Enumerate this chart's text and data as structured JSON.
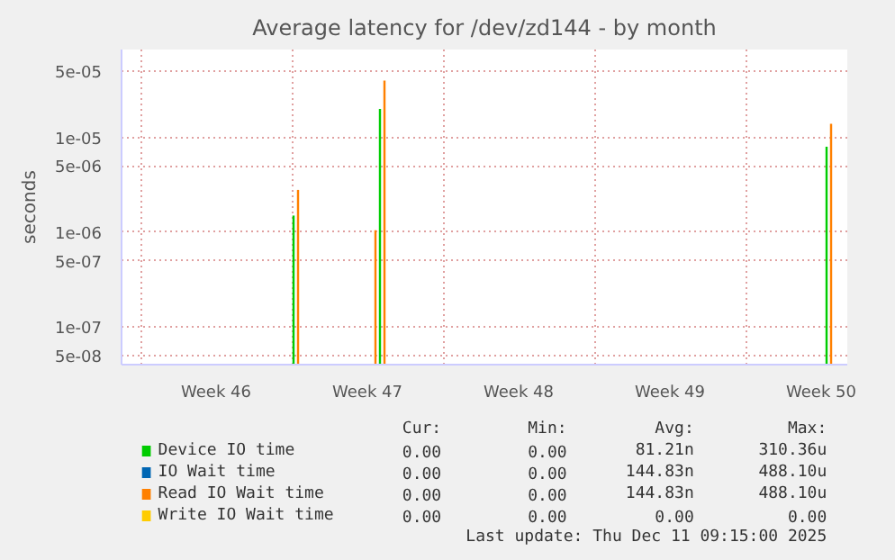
{
  "chart_data": {
    "type": "bar",
    "title": "Average latency for /dev/zd144 - by month",
    "ylabel": "seconds",
    "log": "y",
    "grid": true,
    "legend": "bottom",
    "xlim": [
      "2025-11-09T03:00",
      "2025-12-12T17:00"
    ],
    "xticks": [
      {
        "value": "2025-11-10",
        "label": null
      },
      {
        "value": "2025-11-13T12:00",
        "label": "Week 46"
      },
      {
        "value": "2025-11-17",
        "label": null
      },
      {
        "value": "2025-11-20T12:00",
        "label": "Week 47"
      },
      {
        "value": "2025-11-24",
        "label": null
      },
      {
        "value": "2025-11-27T12:00",
        "label": "Week 48"
      },
      {
        "value": "2025-12-01",
        "label": null
      },
      {
        "value": "2025-12-04T12:00",
        "label": "Week 49"
      },
      {
        "value": "2025-12-08",
        "label": null
      },
      {
        "value": "2025-12-11T12:00",
        "label": "Week 50"
      }
    ],
    "ylim": [
      4e-08,
      8.5e-05
    ],
    "yticks": [
      {
        "value": 5e-08,
        "label": "5e-08"
      },
      {
        "value": 1e-07,
        "label": "1e-07"
      },
      {
        "value": 5e-07,
        "label": "5e-07"
      },
      {
        "value": 1e-06,
        "label": "1e-06"
      },
      {
        "value": 5e-06,
        "label": "5e-06"
      },
      {
        "value": 1e-05,
        "label": "1e-05"
      },
      {
        "value": 5e-05,
        "label": "5e-05"
      }
    ],
    "series": [
      {
        "name": "Device IO time",
        "color": "#00cc00",
        "x": [
          "2025-11-17T02:00",
          "2025-11-21T02:00",
          "2025-12-11T18:00"
        ],
        "values": [
          1.5e-06,
          2e-05,
          8e-06
        ]
      },
      {
        "name": "IO Wait time",
        "color": "#0066b3"
      },
      {
        "name": "Read IO Wait time",
        "color": "#ff8000",
        "x": [
          "2025-11-17T07:00",
          "2025-11-20T21:00",
          "2025-11-21T07:00",
          "2025-12-11T23:00"
        ],
        "values": [
          2.8e-06,
          1.05e-06,
          4e-05,
          1.4e-05
        ]
      },
      {
        "name": "Write IO Wait time",
        "color": "#ffcc00"
      }
    ],
    "annotations": [
      "Cur:",
      "Min:",
      "Avg:",
      "Max:",
      "0.00",
      "0.00",
      "81.21n",
      "310.36u",
      "0.00",
      "0.00",
      "144.83n",
      "488.10u",
      "0.00",
      "0.00",
      "144.83n",
      "488.10u",
      "0.00",
      "0.00",
      "0.00",
      "0.00",
      "Last update: Thu Dec 11 09:15:00 2025"
    ]
  }
}
